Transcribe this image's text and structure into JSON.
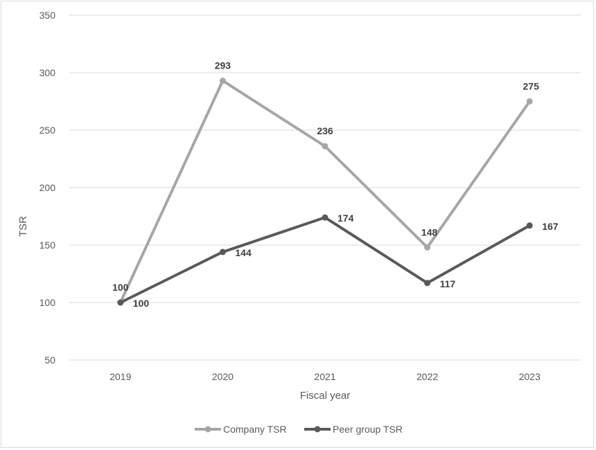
{
  "chart_data": {
    "type": "line",
    "title": "",
    "xlabel": "Fiscal year",
    "ylabel": "TSR",
    "categories": [
      "2019",
      "2020",
      "2021",
      "2022",
      "2023"
    ],
    "ylim": [
      50,
      350
    ],
    "yticks": [
      50,
      100,
      150,
      200,
      250,
      300,
      350
    ],
    "grid": true,
    "legend_position": "bottom",
    "series": [
      {
        "name": "Company TSR",
        "values": [
          100,
          293,
          236,
          148,
          275
        ],
        "color": "#a6a6a6"
      },
      {
        "name": "Peer group TSR",
        "values": [
          100,
          144,
          174,
          117,
          167
        ],
        "color": "#595959"
      }
    ]
  }
}
